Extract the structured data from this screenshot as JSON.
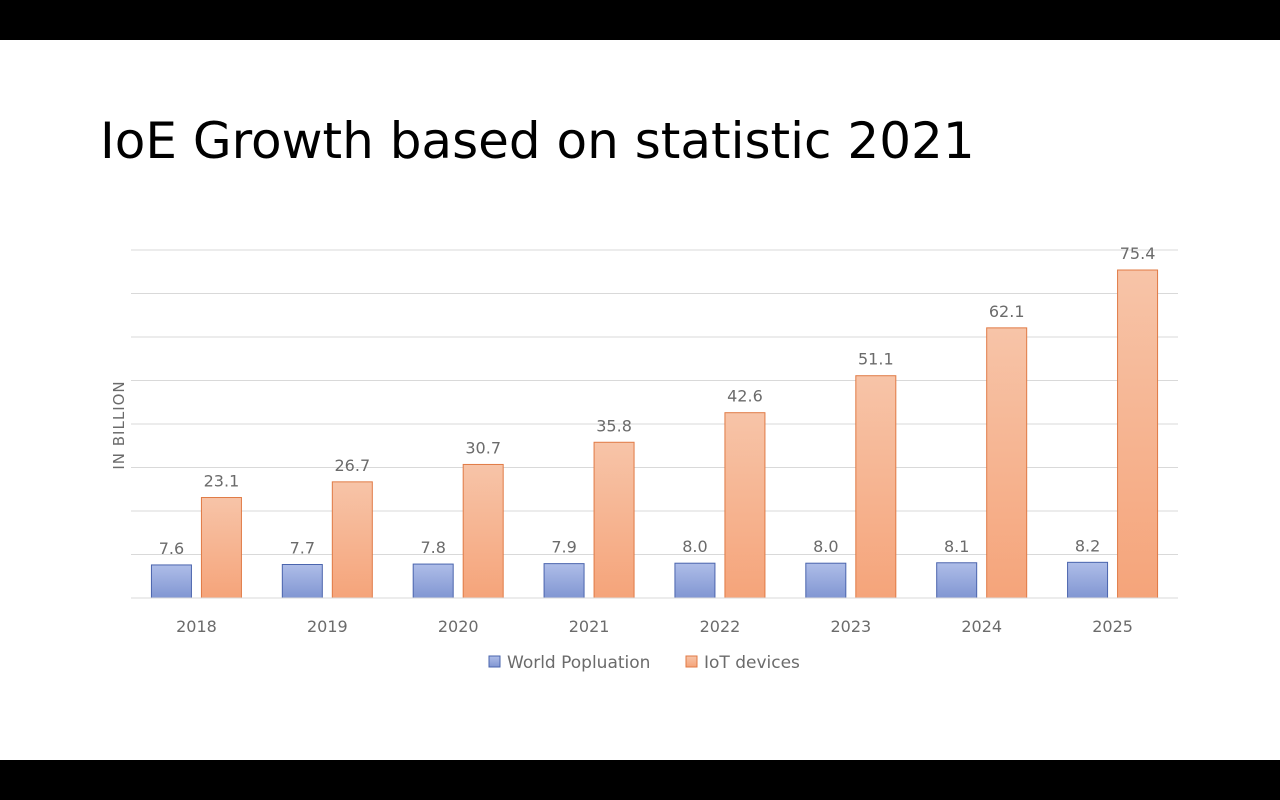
{
  "slide": {
    "title": "IoE Growth based on statistic 2021"
  },
  "chart_data": {
    "type": "bar",
    "title": "",
    "ylabel": "IN BILLION",
    "xlabel": "",
    "categories": [
      "2018",
      "2019",
      "2020",
      "2021",
      "2022",
      "2023",
      "2024",
      "2025"
    ],
    "series": [
      {
        "name": "World Popluation",
        "values": [
          7.6,
          7.7,
          7.8,
          7.9,
          8.0,
          8.0,
          8.1,
          8.2
        ],
        "color_top": "#aebde8",
        "color_bottom": "#8196d2",
        "stroke": "#4a64ad"
      },
      {
        "name": "IoT devices",
        "values": [
          23.1,
          26.7,
          30.7,
          35.8,
          42.6,
          51.1,
          62.1,
          75.4
        ],
        "color_top": "#f7c4a8",
        "color_bottom": "#f5a47a",
        "stroke": "#e07a45"
      }
    ],
    "ylim": [
      0,
      80
    ],
    "gridlines": true,
    "legend_position": "bottom"
  }
}
